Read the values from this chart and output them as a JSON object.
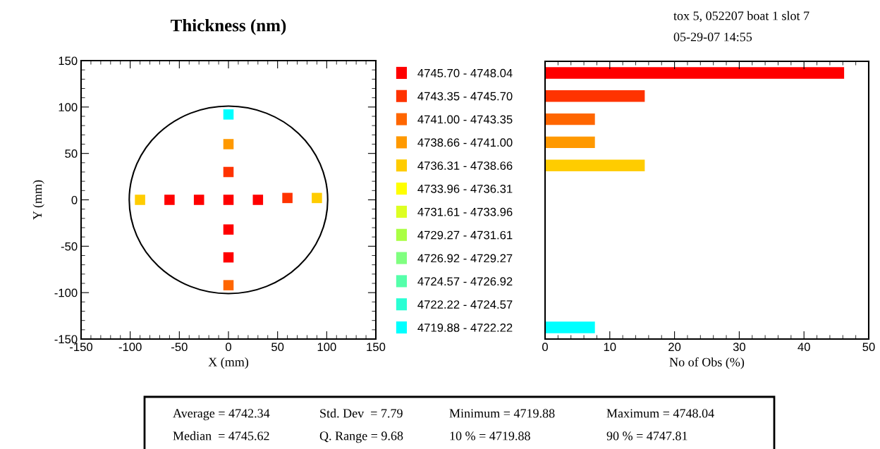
{
  "chart_data": [
    {
      "type": "scatter",
      "title": "Thickness (nm)",
      "xlabel": "X (mm)",
      "ylabel": "Y (mm)",
      "marker": "square",
      "grid": false,
      "x": [
        0,
        0,
        0,
        -90,
        -60,
        -30,
        0,
        30,
        60,
        90,
        0,
        0,
        0
      ],
      "values": [
        92,
        60,
        30,
        0,
        0,
        0,
        0,
        0,
        2,
        2,
        -32,
        -62,
        -92
      ],
      "colors": [
        "#00ffff",
        "#ff9900",
        "#ff3300",
        "#ffcc00",
        "#ff0000",
        "#ff0000",
        "#ff0000",
        "#ff0000",
        "#ff3300",
        "#ffcc00",
        "#ff0000",
        "#ff0000",
        "#ff6600"
      ],
      "xlim": [
        -150,
        150
      ],
      "ylim": [
        -150,
        150
      ],
      "xticks": [
        -150,
        -100,
        -50,
        0,
        50,
        100,
        150
      ],
      "yticks": [
        -150,
        -100,
        -50,
        0,
        50,
        100,
        150
      ],
      "annotations": [
        "tox 5, 052207 boat 1 slot 7",
        "05-29-07 14:55",
        "Average = 4742.34",
        "Std. Dev  = 7.79",
        "Minimum = 4719.88",
        "Maximum = 4748.04",
        "Median  = 4745.62",
        "Q. Range = 9.68",
        "10 % = 4719.88",
        "90 % = 4747.81"
      ]
    },
    {
      "type": "bar",
      "orientation": "horizontal",
      "xlabel": "No of Obs (%)",
      "grid": false,
      "categories": [
        "4745.70 - 4748.04",
        "4743.35 - 4745.70",
        "4741.00 - 4743.35",
        "4738.66 - 4741.00",
        "4736.31 - 4738.66",
        "4733.96 - 4736.31",
        "4731.61 - 4733.96",
        "4729.27 - 4731.61",
        "4726.92 - 4729.27",
        "4724.57 - 4726.92",
        "4722.22 - 4724.57",
        "4719.88 - 4722.22"
      ],
      "values": [
        46.2,
        15.4,
        7.7,
        7.7,
        15.4,
        0,
        0,
        0,
        0,
        0,
        0,
        7.7
      ],
      "colors": [
        "#ff0000",
        "#ff3300",
        "#ff6600",
        "#ff9900",
        "#ffcc00",
        "#ffff00",
        "#ddff22",
        "#aaff44",
        "#80ff80",
        "#55ffaa",
        "#2affd4",
        "#00ffff"
      ],
      "xlim": [
        0,
        50
      ],
      "xticks": [
        0,
        10,
        20,
        30,
        40,
        50
      ]
    }
  ]
}
